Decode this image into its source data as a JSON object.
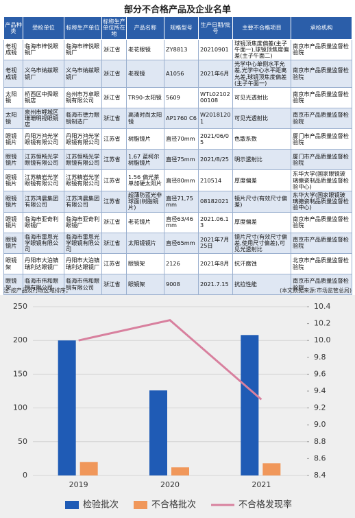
{
  "title": "部分不合格产品及企业名单",
  "table": {
    "header": [
      "产品种类",
      "受检单位",
      "标称生产单位",
      "标称生产单位所在地",
      "产品名称",
      "规格型号",
      "生产日期/批号",
      "主要不合格项目",
      "承检机构"
    ],
    "rows": [
      [
        "老视成镜",
        "临海市梓悦眼镜厂",
        "临海市梓悦眼镜厂",
        "浙江省",
        "老花眼镜",
        "ZY8813",
        "20210901",
        "球镜顶焦度偏差(主子午面一),球镜顶焦度偏差(主子午面二)",
        "南京市产品质量监督检验院"
      ],
      [
        "老视成镜",
        "义乌市纳兹眼镜厂",
        "义乌市纳兹眼镜厂",
        "浙江省",
        "老视镜",
        "A1056",
        "2021年6月",
        "光学中心单侧水平允差,光学中心水平距离允差,球镜顶焦度偏差(主子午面一)",
        "南京市产品质量监督检验院"
      ],
      [
        "太阳镜",
        "桥西区中舜眼镜店",
        "台州市万卓眼镜有限公司",
        "浙江省",
        "TR90-太阳镜",
        "5609",
        "WTL0210200108",
        "可见光透射比",
        "南京市产品质量监督检验院"
      ],
      [
        "太阳镜",
        "泉州市鲤城区珊珊明视眼镜店",
        "临海市德力眼镜制造厂",
        "浙江省",
        "高清时尚太阳镜",
        "AP1760 C6",
        "W20181201",
        "可见光透射比",
        "南京市产品质量监督检验院"
      ],
      [
        "眼镜镜片",
        "丹阳万鸿光学眼镜有限公司",
        "丹阳万鸿光学眼镜有限公司",
        "江苏省",
        "树脂镜片",
        "直径70mm",
        "2021/06/05",
        "色散系数",
        "厦门市产品质量监督检验院"
      ],
      [
        "眼镜镜片",
        "江苏恒畅光学眼镜有限公司",
        "江苏恒畅光学眼镜有限公司",
        "江苏省",
        "1.67 蓝柯尔树脂镜片",
        "直径75mm",
        "2021/8/25",
        "明示透射比",
        "厦门市产品质量监督检验院"
      ],
      [
        "眼镜镜片",
        "江苏精岩光学眼镜有限公司",
        "江苏精岩光学眼镜有限公司",
        "江苏省",
        "1.56 偏光茶单加硬太阳片",
        "直径80mm",
        "210514",
        "厚度偏差",
        "东华大学(国家眼镜玻璃搪瓷制品质量监督检验中心)"
      ],
      [
        "眼镜镜片",
        "江苏鸿晨集团有限公司",
        "江苏鸿晨集团有限公司",
        "江苏省",
        "超薄防蓝光非球面(树脂镜片)",
        "直径71,75mm",
        "08182021",
        "镜片尺寸(有效尺寸偏差)",
        "东华大学(国家眼镜玻璃搪瓷制品质量监督检验中心)"
      ],
      [
        "眼镜镜片",
        "临海市亚奇利眼镜厂",
        "临海市亚奇利眼镜厂",
        "浙江省",
        "老花镜片",
        "直径63/46mm",
        "2021.06.13",
        "厚度偏差",
        "南京市产品质量监督检验院"
      ],
      [
        "眼镜镜片",
        "临海市雷恩光学眼镜有限公司",
        "临海市雷恩光学眼镜有限公司",
        "浙江省",
        "太阳镜镜片",
        "直径65mm",
        "2021年7月25日",
        "镜片尺寸(有效尺寸偏差,使用尺寸偏差),可见光透射比",
        "南京市产品质量监督检验院"
      ],
      [
        "眼镜架",
        "丹阳市大泊镇瑞利达眼镜厂",
        "丹阳市大泊镇瑞利达眼镜厂",
        "江苏省",
        "眼镜架",
        "2126",
        "2021年8月",
        "抗汗腐蚀",
        "北京市产品质量监督检验院"
      ],
      [
        "眼镜架",
        "临海市伟和眼镜有限公司",
        "临海市伟和眼镜有限公司",
        "浙江省",
        "眼镜架",
        "9008",
        "2021.7.15",
        "抗拉性能",
        "南京市产品质量监督检验院"
      ]
    ]
  },
  "notes": {
    "left": "注:按产品及行政区域排序。",
    "right": "(本文数据来源:市场监管总局)"
  },
  "chart_data": {
    "type": "bar",
    "categories": [
      "2019",
      "2020",
      "2021"
    ],
    "series": [
      {
        "name": "检验批次",
        "color": "#1f5bb5",
        "values": [
          200,
          126,
          208
        ]
      },
      {
        "name": "不合格批次",
        "color": "#f0975a",
        "values": [
          20,
          12,
          18
        ]
      },
      {
        "name": "不合格发现率",
        "color": "#d8809e",
        "type": "line",
        "axis": "y2",
        "values": [
          10.0,
          10.24,
          9.3
        ]
      }
    ],
    "ylim": [
      0,
      250
    ],
    "yticks": [
      0,
      50,
      100,
      150,
      200,
      250
    ],
    "y2lim": [
      8.4,
      10.4
    ],
    "y2ticks": [
      8.4,
      8.6,
      8.8,
      {
        "value": 9.0,
        "label": "9.0"
      },
      9.2,
      9.4,
      9.6,
      9.8,
      {
        "value": 10.0,
        "label": "10.0"
      },
      10.2,
      10.4
    ],
    "grid": true
  }
}
